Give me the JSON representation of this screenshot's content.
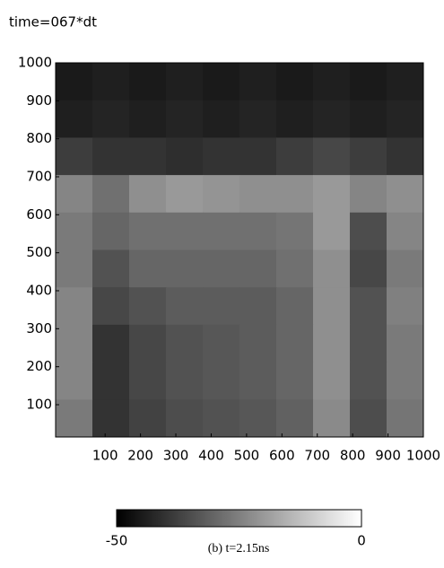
{
  "chart_data": {
    "type": "heatmap",
    "title": "time=067*dt",
    "caption": "(b) t=2.15ns",
    "colormap": "gray",
    "xlim": [
      -40,
      1000
    ],
    "ylim": [
      15,
      1000
    ],
    "xticks": [
      100,
      200,
      300,
      400,
      500,
      600,
      700,
      800,
      900,
      1000
    ],
    "yticks": [
      100,
      200,
      300,
      400,
      500,
      600,
      700,
      800,
      900,
      1000
    ],
    "clim": [
      -50,
      0
    ],
    "cticks": [
      -50,
      0
    ],
    "z": [
      [
        -45,
        -44,
        -45,
        -44,
        -45,
        -44,
        -45,
        -44,
        -45,
        -44
      ],
      [
        -44,
        -43,
        -44,
        -43,
        -44,
        -43,
        -44,
        -43,
        -44,
        -43
      ],
      [
        -38,
        -40,
        -40,
        -41,
        -40,
        -40,
        -38,
        -36,
        -38,
        -40
      ],
      [
        -24,
        -28,
        -22,
        -20,
        -21,
        -22,
        -22,
        -20,
        -24,
        -22
      ],
      [
        -26,
        -30,
        -28,
        -28,
        -28,
        -28,
        -27,
        -20,
        -35,
        -24
      ],
      [
        -26,
        -34,
        -30,
        -30,
        -30,
        -30,
        -28,
        -22,
        -36,
        -26
      ],
      [
        -24,
        -36,
        -34,
        -32,
        -32,
        -32,
        -30,
        -22,
        -34,
        -25
      ],
      [
        -24,
        -40,
        -36,
        -34,
        -33,
        -32,
        -30,
        -22,
        -34,
        -26
      ],
      [
        -24,
        -40,
        -36,
        -34,
        -33,
        -32,
        -30,
        -22,
        -34,
        -26
      ],
      [
        -26,
        -40,
        -37,
        -35,
        -34,
        -33,
        -31,
        -23,
        -35,
        -27
      ]
    ]
  }
}
